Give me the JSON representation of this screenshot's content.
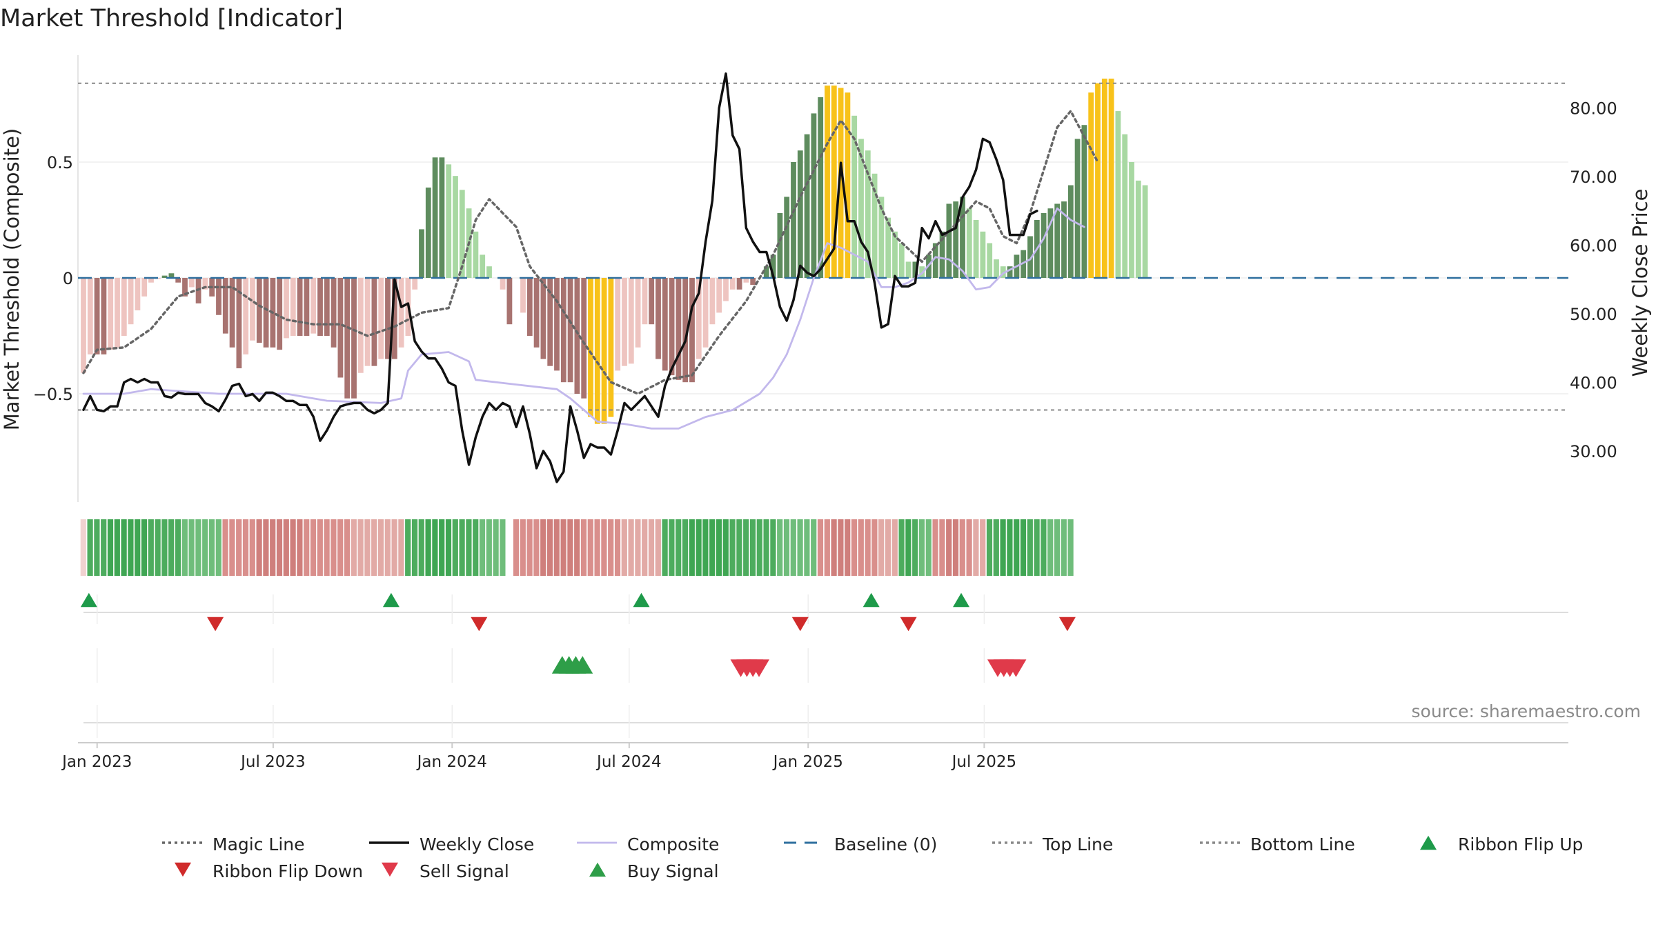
{
  "chart_data": {
    "type": "bar",
    "title": "Market Threshold [Indicator]",
    "ylabel_left": "Market Threshold (Composite)",
    "ylabel_right": "Weekly Close Price",
    "source": "source: sharemaestro.com",
    "x_ticks": [
      "Jan 2023",
      "Jul 2023",
      "Jan 2024",
      "Jul 2024",
      "Jan 2025",
      "Jul 2025"
    ],
    "x_tick_dates": [
      "2023-01-01",
      "2023-07-01",
      "2024-01-01",
      "2024-07-01",
      "2025-01-01",
      "2025-07-01"
    ],
    "date_range": [
      "2022-12-18",
      "2025-09-21"
    ],
    "week_count": 146,
    "y_left": {
      "ticks": [
        0.5,
        0,
        -0.5
      ],
      "tick_labels": [
        "0.5",
        "0",
        "−0.5"
      ],
      "range": [
        -0.95,
        0.97
      ]
    },
    "y_right": {
      "ticks": [
        80,
        70,
        60,
        50,
        40,
        30
      ],
      "tick_labels": [
        "80.00",
        "70.00",
        "60.00",
        "50.00",
        "40.00",
        "30.00"
      ],
      "range": [
        21.5,
        89.6
      ]
    },
    "top_line": 0.84,
    "bottom_line": -0.57,
    "baseline": 0,
    "series": [
      {
        "name": "Composite",
        "key": "composite",
        "color": "#c2b8ec",
        "points": [
          [
            0,
            -0.5
          ],
          [
            6,
            -0.5
          ],
          [
            10,
            -0.48
          ],
          [
            20,
            -0.5
          ],
          [
            30,
            -0.5
          ],
          [
            36,
            -0.53
          ],
          [
            44,
            -0.54
          ],
          [
            47,
            -0.52
          ],
          [
            48,
            -0.4
          ],
          [
            50,
            -0.33
          ],
          [
            54,
            -0.32
          ],
          [
            57,
            -0.36
          ],
          [
            58,
            -0.44
          ],
          [
            64,
            -0.46
          ],
          [
            70,
            -0.48
          ],
          [
            72,
            -0.52
          ],
          [
            74,
            -0.57
          ],
          [
            76,
            -0.62
          ],
          [
            80,
            -0.63
          ],
          [
            84,
            -0.65
          ],
          [
            88,
            -0.65
          ],
          [
            92,
            -0.6
          ],
          [
            96,
            -0.57
          ],
          [
            100,
            -0.5
          ],
          [
            102,
            -0.43
          ],
          [
            104,
            -0.33
          ],
          [
            106,
            -0.18
          ],
          [
            108,
            0.0
          ],
          [
            110,
            0.15
          ],
          [
            112,
            0.13
          ],
          [
            114,
            0.1
          ],
          [
            116,
            0.07
          ],
          [
            118,
            -0.04
          ],
          [
            120,
            -0.04
          ],
          [
            122,
            -0.02
          ],
          [
            124,
            0.02
          ],
          [
            126,
            0.09
          ],
          [
            128,
            0.08
          ],
          [
            130,
            0.03
          ],
          [
            132,
            -0.05
          ],
          [
            134,
            -0.04
          ],
          [
            136,
            0.02
          ],
          [
            140,
            0.08
          ],
          [
            142,
            0.17
          ],
          [
            144,
            0.3
          ],
          [
            146,
            0.25
          ],
          [
            148,
            0.22
          ]
        ]
      },
      {
        "name": "Magic Line",
        "key": "magic",
        "color": "#666666",
        "points": [
          [
            0,
            -0.41
          ],
          [
            2,
            -0.31
          ],
          [
            6,
            -0.3
          ],
          [
            10,
            -0.22
          ],
          [
            14,
            -0.08
          ],
          [
            18,
            -0.04
          ],
          [
            22,
            -0.04
          ],
          [
            26,
            -0.12
          ],
          [
            30,
            -0.18
          ],
          [
            34,
            -0.2
          ],
          [
            38,
            -0.2
          ],
          [
            42,
            -0.25
          ],
          [
            46,
            -0.21
          ],
          [
            50,
            -0.15
          ],
          [
            54,
            -0.13
          ],
          [
            56,
            0.05
          ],
          [
            58,
            0.25
          ],
          [
            60,
            0.34
          ],
          [
            64,
            0.22
          ],
          [
            66,
            0.05
          ],
          [
            70,
            -0.1
          ],
          [
            74,
            -0.28
          ],
          [
            78,
            -0.45
          ],
          [
            82,
            -0.5
          ],
          [
            86,
            -0.44
          ],
          [
            90,
            -0.42
          ],
          [
            94,
            -0.25
          ],
          [
            98,
            -0.1
          ],
          [
            102,
            0.1
          ],
          [
            106,
            0.35
          ],
          [
            110,
            0.58
          ],
          [
            112,
            0.68
          ],
          [
            114,
            0.6
          ],
          [
            116,
            0.45
          ],
          [
            118,
            0.3
          ],
          [
            120,
            0.18
          ],
          [
            124,
            0.07
          ],
          [
            128,
            0.2
          ],
          [
            132,
            0.33
          ],
          [
            134,
            0.3
          ],
          [
            136,
            0.18
          ],
          [
            138,
            0.15
          ],
          [
            140,
            0.28
          ],
          [
            144,
            0.65
          ],
          [
            146,
            0.72
          ],
          [
            150,
            0.5
          ]
        ]
      },
      {
        "name": "Weekly Close",
        "key": "close",
        "axis": "right",
        "color": "#111111",
        "points": [
          [
            0,
            36
          ],
          [
            1,
            38
          ],
          [
            2,
            36
          ],
          [
            3,
            35.8
          ],
          [
            4,
            36.5
          ],
          [
            5,
            36.5
          ],
          [
            6,
            40
          ],
          [
            7,
            40.5
          ],
          [
            8,
            40
          ],
          [
            9,
            40.5
          ],
          [
            10,
            40
          ],
          [
            11,
            40
          ],
          [
            12,
            38
          ],
          [
            13,
            37.8
          ],
          [
            14,
            38.5
          ],
          [
            15,
            38.3
          ],
          [
            16,
            38.3
          ],
          [
            17,
            38.3
          ],
          [
            18,
            37
          ],
          [
            19,
            36.5
          ],
          [
            20,
            35.8
          ],
          [
            21,
            37.5
          ],
          [
            22,
            39.5
          ],
          [
            23,
            39.8
          ],
          [
            24,
            38
          ],
          [
            25,
            38.3
          ],
          [
            26,
            37.3
          ],
          [
            27,
            38.5
          ],
          [
            28,
            38.5
          ],
          [
            29,
            38
          ],
          [
            30,
            37.3
          ],
          [
            31,
            37.3
          ],
          [
            32,
            36.7
          ],
          [
            33,
            36.7
          ],
          [
            34,
            35
          ],
          [
            35,
            31.5
          ],
          [
            36,
            33
          ],
          [
            37,
            35
          ],
          [
            38,
            36.5
          ],
          [
            39,
            36.8
          ],
          [
            40,
            37
          ],
          [
            41,
            37
          ],
          [
            42,
            36
          ],
          [
            43,
            35.5
          ],
          [
            44,
            36
          ],
          [
            45,
            37
          ],
          [
            46,
            55
          ],
          [
            47,
            51
          ],
          [
            48,
            51.5
          ],
          [
            49,
            46
          ],
          [
            50,
            44.5
          ],
          [
            51,
            43.5
          ],
          [
            52,
            43.5
          ],
          [
            53,
            42
          ],
          [
            54,
            40
          ],
          [
            55,
            39.5
          ],
          [
            56,
            33
          ],
          [
            57,
            28
          ],
          [
            58,
            32
          ],
          [
            59,
            35
          ],
          [
            60,
            37
          ],
          [
            61,
            36
          ],
          [
            62,
            37
          ],
          [
            63,
            36.5
          ],
          [
            64,
            33.5
          ],
          [
            65,
            36.5
          ],
          [
            66,
            32.5
          ],
          [
            67,
            27.5
          ],
          [
            68,
            30
          ],
          [
            69,
            28.5
          ],
          [
            70,
            25.5
          ],
          [
            71,
            27
          ],
          [
            72,
            36.5
          ],
          [
            73,
            33
          ],
          [
            74,
            29
          ],
          [
            75,
            31
          ],
          [
            76,
            30.5
          ],
          [
            77,
            30.5
          ],
          [
            78,
            29.5
          ],
          [
            79,
            33
          ],
          [
            80,
            37
          ],
          [
            81,
            36
          ],
          [
            82,
            37
          ],
          [
            83,
            38
          ],
          [
            84,
            36.5
          ],
          [
            85,
            35
          ],
          [
            86,
            39.5
          ],
          [
            87,
            42
          ],
          [
            88,
            44
          ],
          [
            89,
            46
          ],
          [
            90,
            51
          ],
          [
            91,
            53
          ],
          [
            92,
            60.5
          ],
          [
            93,
            66.5
          ],
          [
            94,
            80
          ],
          [
            95,
            85
          ],
          [
            96,
            76
          ],
          [
            97,
            74
          ],
          [
            98,
            62.5
          ],
          [
            99,
            60.5
          ],
          [
            100,
            59
          ],
          [
            101,
            59
          ],
          [
            102,
            55.5
          ],
          [
            103,
            51
          ],
          [
            104,
            49
          ],
          [
            105,
            52
          ],
          [
            106,
            57
          ],
          [
            107,
            56
          ],
          [
            108,
            55.5
          ],
          [
            109,
            56.5
          ],
          [
            110,
            58
          ],
          [
            111,
            59.5
          ],
          [
            112,
            72
          ],
          [
            113,
            63.5
          ],
          [
            114,
            63.5
          ],
          [
            115,
            60.5
          ],
          [
            116,
            59
          ],
          [
            117,
            54.5
          ],
          [
            118,
            48
          ],
          [
            119,
            48.5
          ],
          [
            120,
            55.5
          ],
          [
            121,
            54
          ],
          [
            122,
            54
          ],
          [
            123,
            54.5
          ],
          [
            124,
            62.5
          ],
          [
            125,
            61
          ],
          [
            126,
            63.5
          ],
          [
            127,
            61.5
          ],
          [
            128,
            62
          ],
          [
            129,
            62.5
          ],
          [
            130,
            67
          ],
          [
            131,
            68.5
          ],
          [
            132,
            71
          ],
          [
            133,
            75.5
          ],
          [
            134,
            75
          ],
          [
            135,
            72.5
          ],
          [
            136,
            69.5
          ],
          [
            137,
            61.5
          ],
          [
            138,
            61.5
          ],
          [
            139,
            61.5
          ],
          [
            140,
            64.5
          ],
          [
            141,
            65
          ]
        ]
      }
    ],
    "bars": [
      -0.41,
      -0.33,
      -0.33,
      -0.33,
      -0.31,
      -0.3,
      -0.25,
      -0.2,
      -0.14,
      -0.08,
      -0.02,
      0.0,
      0.01,
      0.02,
      -0.02,
      -0.08,
      -0.04,
      -0.11,
      -0.05,
      -0.08,
      -0.16,
      -0.24,
      -0.3,
      -0.39,
      -0.33,
      -0.27,
      -0.28,
      -0.3,
      -0.3,
      -0.31,
      -0.26,
      -0.25,
      -0.25,
      -0.25,
      -0.24,
      -0.25,
      -0.25,
      -0.3,
      -0.43,
      -0.52,
      -0.52,
      -0.41,
      -0.38,
      -0.38,
      -0.35,
      -0.35,
      -0.35,
      -0.3,
      -0.25,
      -0.05,
      0.21,
      0.39,
      0.52,
      0.52,
      0.49,
      0.44,
      0.38,
      0.3,
      0.2,
      0.1,
      0.05,
      null,
      -0.05,
      -0.2,
      null,
      -0.15,
      -0.25,
      -0.3,
      -0.35,
      -0.38,
      -0.4,
      -0.45,
      -0.45,
      -0.5,
      -0.52,
      -0.6,
      -0.63,
      -0.63,
      -0.6,
      -0.4,
      -0.38,
      -0.37,
      -0.3,
      -0.2,
      -0.2,
      -0.35,
      -0.4,
      -0.42,
      -0.44,
      -0.45,
      -0.45,
      -0.35,
      -0.3,
      -0.2,
      -0.15,
      -0.1,
      -0.05,
      -0.05,
      -0.02,
      -0.03,
      null,
      0.05,
      0.1,
      0.28,
      0.35,
      0.5,
      0.55,
      0.62,
      0.71,
      0.78,
      0.83,
      0.83,
      0.82,
      0.8,
      0.7,
      0.6,
      0.55,
      0.45,
      0.35,
      0.26,
      0.2,
      0.15,
      0.07,
      0.07,
      0.05,
      0.1,
      0.15,
      0.2,
      0.32,
      0.33,
      0.35,
      0.3,
      0.25,
      0.2,
      0.15,
      0.08,
      0.05,
      0.05,
      0.1,
      0.12,
      0.18,
      0.25,
      0.28,
      0.3,
      0.32,
      0.33,
      0.4,
      0.6,
      0.66,
      0.8,
      0.84,
      0.86,
      0.86,
      0.72,
      0.62,
      0.5,
      0.42,
      0.4
    ],
    "ribbon_blocks": [
      [
        1,
        20,
        "up"
      ],
      [
        21,
        47,
        "down"
      ],
      [
        48,
        63,
        "up"
      ],
      [
        64,
        85,
        "down"
      ],
      [
        86,
        108,
        "up"
      ],
      [
        109,
        120,
        "down"
      ],
      [
        121,
        125,
        "up"
      ],
      [
        126,
        133,
        "down"
      ],
      [
        134,
        146,
        "up"
      ]
    ],
    "ribbon_flip_up": [
      0.8,
      45.5,
      82.5,
      116.5,
      129.8
    ],
    "ribbon_flip_down": [
      19.5,
      58.5,
      106,
      122,
      145.5
    ],
    "buy_signal": [
      70.8,
      71.8,
      72.8,
      73.8
    ],
    "sell_signal": [
      97.2,
      98.1,
      99,
      99.9,
      135.2,
      136.1,
      137,
      137.9
    ],
    "legend": [
      {
        "label": "Magic Line",
        "kind": "dotted",
        "color": "#666666"
      },
      {
        "label": "Weekly Close",
        "kind": "solid",
        "color": "#111111"
      },
      {
        "label": "Composite",
        "kind": "thin",
        "color": "#c2b8ec"
      },
      {
        "label": "Baseline (0)",
        "kind": "dashed",
        "color": "#2e6f9e"
      },
      {
        "label": "Top Line",
        "kind": "dotted",
        "color": "#888888"
      },
      {
        "label": "Bottom Line",
        "kind": "dotted",
        "color": "#888888"
      },
      {
        "label": "Ribbon Flip Up",
        "kind": "tri-up",
        "color": "#1e9a4a"
      },
      {
        "label": "Ribbon Flip Down",
        "kind": "tri-down",
        "color": "#d02b2b"
      },
      {
        "label": "Sell Signal",
        "kind": "tri-down",
        "color": "#e03a4a"
      },
      {
        "label": "Buy Signal",
        "kind": "tri-up",
        "color": "#2e9e48"
      }
    ],
    "colors": {
      "bar_dark_green": "#5e8c5e",
      "bar_light_green": "#a8d8a2",
      "bar_dark_red": "#a87370",
      "bar_light_red": "#eec4c0",
      "bar_extreme": "#f8c21a",
      "ribbon_up": "#4dac5e",
      "ribbon_down": "#d98f8c",
      "grid": "#eeeeee",
      "axis_text": "#222222"
    }
  }
}
